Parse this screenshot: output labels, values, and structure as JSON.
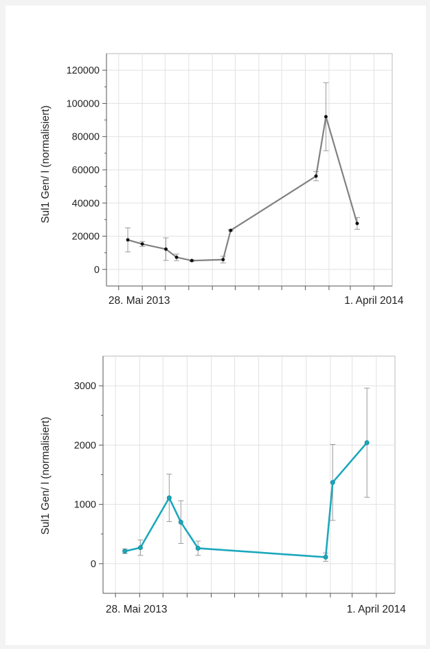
{
  "chart_data": [
    {
      "type": "line",
      "ylabel": "Sul1 Gen/ l (normalisiert)",
      "ylim": [
        -10000,
        130000
      ],
      "yticks": [
        0,
        20000,
        40000,
        60000,
        80000,
        100000,
        120000
      ],
      "ytick_labels": [
        "0",
        "20000",
        "40000",
        "60000",
        "80000",
        "100000",
        "120000"
      ],
      "xlim": [
        "2013-04-15",
        "2014-04-25"
      ],
      "xtick_labels": [
        {
          "date": "2013-05-28",
          "label": "28. Mai 2013"
        },
        {
          "date": "2014-04-01",
          "label": "1. April 2014"
        }
      ],
      "xgrid_dates": [
        "2013-05-01",
        "2013-06-01",
        "2013-07-01",
        "2013-08-01",
        "2013-09-01",
        "2013-10-01",
        "2013-11-01",
        "2013-12-01",
        "2014-01-01",
        "2014-02-01",
        "2014-03-01",
        "2014-04-01"
      ],
      "grid": true,
      "color": "#808080",
      "series": [
        {
          "points": [
            {
              "x": "2013-05-13",
              "y": 17800,
              "err": 7200
            },
            {
              "x": "2013-06-01",
              "y": 15300,
              "err": 1500
            },
            {
              "x": "2013-07-02",
              "y": 12200,
              "err": 6800
            },
            {
              "x": "2013-07-16",
              "y": 7300,
              "err": 2000
            },
            {
              "x": "2013-08-05",
              "y": 5300,
              "err": 500
            },
            {
              "x": "2013-09-15",
              "y": 5900,
              "err": 2000
            },
            {
              "x": "2013-09-25",
              "y": 23500,
              "err": 400
            },
            {
              "x": "2014-01-15",
              "y": 56200,
              "err": 2800
            },
            {
              "x": "2014-01-28",
              "y": 92000,
              "err": 20500
            },
            {
              "x": "2014-03-10",
              "y": 27700,
              "err": 3500
            }
          ]
        }
      ]
    },
    {
      "type": "line",
      "ylabel": "Sul1 Gen/ l (normalisiert)",
      "ylim": [
        -500,
        3500
      ],
      "yticks": [
        0,
        1000,
        2000,
        3000
      ],
      "ytick_labels": [
        "0",
        "1000",
        "2000",
        "3000"
      ],
      "xlim": [
        "2013-04-15",
        "2014-04-25"
      ],
      "xtick_labels": [
        {
          "date": "2013-05-28",
          "label": "28. Mai 2013"
        },
        {
          "date": "2014-04-01",
          "label": "1. April 2014"
        }
      ],
      "xgrid_dates": [
        "2013-05-01",
        "2013-06-01",
        "2013-07-01",
        "2013-08-01",
        "2013-09-01",
        "2013-10-01",
        "2013-11-01",
        "2013-12-01",
        "2014-01-01",
        "2014-02-01",
        "2014-03-01",
        "2014-04-01"
      ],
      "grid": true,
      "color": "#1ba8bd",
      "series": [
        {
          "points": [
            {
              "x": "2013-05-13",
              "y": 210,
              "err": 40
            },
            {
              "x": "2013-06-02",
              "y": 270,
              "err": 130
            },
            {
              "x": "2013-07-09",
              "y": 1110,
              "err": 400
            },
            {
              "x": "2013-07-24",
              "y": 700,
              "err": 360
            },
            {
              "x": "2013-08-15",
              "y": 260,
              "err": 120
            },
            {
              "x": "2014-01-26",
              "y": 110,
              "err": 70
            },
            {
              "x": "2014-02-04",
              "y": 1370,
              "err": 640
            },
            {
              "x": "2014-03-20",
              "y": 2040,
              "err": 920
            }
          ]
        }
      ]
    }
  ]
}
